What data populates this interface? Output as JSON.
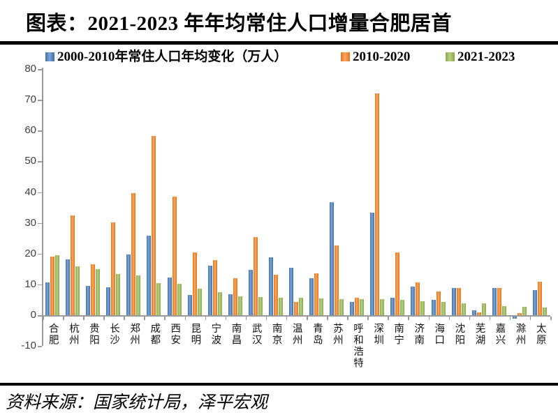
{
  "page": {
    "title": "图表：2021-2023 年年均常住人口增量合肥居首",
    "source": "资料来源：国家统计局，泽平宏观"
  },
  "chart_data": {
    "type": "bar",
    "title": "图表：2021-2023 年年均常住人口增量合肥居首",
    "unit": "万人",
    "categories": [
      "合肥",
      "杭州",
      "贵阳",
      "长沙",
      "郑州",
      "成都",
      "西安",
      "昆明",
      "宁波",
      "南昌",
      "武汉",
      "南京",
      "温州",
      "青岛",
      "苏州",
      "呼和浩特",
      "深圳",
      "南宁",
      "济南",
      "海口",
      "沈阳",
      "芜湖",
      "嘉兴",
      "滁州",
      "太原"
    ],
    "series": [
      {
        "name": "2000-2010年常住人口年均变化（万人）",
        "color": "#4F81BD",
        "color_edge": "#3E6DA5",
        "color_light": "#7CA5D7",
        "values": [
          10.6,
          18.2,
          9.5,
          9.0,
          19.7,
          25.9,
          12.2,
          6.5,
          16.1,
          6.9,
          14.7,
          18.8,
          15.3,
          12.1,
          36.7,
          4.4,
          33.4,
          5.7,
          9.2,
          5.0,
          8.9,
          1.5,
          8.9,
          -0.6,
          8.2
        ]
      },
      {
        "name": "2010-2020",
        "color": "#F0832A",
        "color_edge": "#E0751C",
        "color_light": "#F9A660",
        "values": [
          19.1,
          32.3,
          16.5,
          30.1,
          39.7,
          58.2,
          38.6,
          20.3,
          17.9,
          11.9,
          25.3,
          13.1,
          4.4,
          13.5,
          22.7,
          5.6,
          72.0,
          20.5,
          10.6,
          7.8,
          8.9,
          0.8,
          8.9,
          0.6,
          10.9
        ]
      },
      {
        "name": "2021-2023",
        "color": "#9BBB59",
        "color_edge": "#89A945",
        "color_light": "#B7CE87",
        "values": [
          19.4,
          15.9,
          15.0,
          13.4,
          13.0,
          10.4,
          10.1,
          8.5,
          7.5,
          6.2,
          6.0,
          5.7,
          5.6,
          5.5,
          5.2,
          5.3,
          5.1,
          5.0,
          4.5,
          4.3,
          3.9,
          3.8,
          2.9,
          2.7,
          2.6
        ]
      }
    ],
    "ylim": [
      -10,
      80
    ],
    "yticks": [
      80,
      70,
      60,
      50,
      40,
      30,
      20,
      10,
      0,
      -10
    ],
    "grid": false,
    "legend_position": "top"
  }
}
